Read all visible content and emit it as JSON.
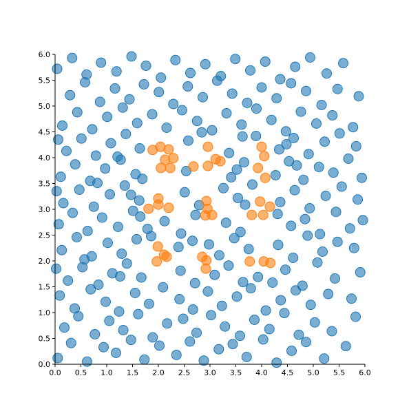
{
  "chart_data": {
    "type": "scatter",
    "xlim": [
      0,
      6
    ],
    "ylim": [
      0,
      6
    ],
    "xticks": [
      {
        "value": 0,
        "label": "0.0"
      },
      0.5,
      {
        "value": 1,
        "label": "1.0"
      },
      1.5,
      {
        "value": 2,
        "label": "2.0"
      },
      2.5,
      {
        "value": 3,
        "label": "3.0"
      },
      3.5,
      {
        "value": 4,
        "label": "4.0"
      },
      4.5,
      {
        "value": 5,
        "label": "5.0"
      },
      5.5,
      {
        "value": 6,
        "label": "6.0"
      }
    ],
    "yticks": [
      {
        "value": 0,
        "label": "0.0"
      },
      0.5,
      {
        "value": 1,
        "label": "1.0"
      },
      1.5,
      {
        "value": 2,
        "label": "2.0"
      },
      2.5,
      {
        "value": 3,
        "label": "3.0"
      },
      3.5,
      {
        "value": 4,
        "label": "4.0"
      },
      4.5,
      {
        "value": 5,
        "label": "5.0"
      },
      5.5,
      {
        "value": 6,
        "label": "6.0"
      }
    ],
    "series": [
      {
        "color": "#1f77b4",
        "x": [
          0.05,
          0.31,
          0.62,
          0.94,
          1.18,
          1.47,
          1.73,
          2.02,
          2.35,
          2.61,
          2.88,
          3.17,
          3.44,
          3.71,
          4.03,
          4.29,
          4.58,
          4.86,
          5.21,
          5.63,
          0.18,
          0.45,
          0.77,
          1.05,
          1.32,
          1.61,
          1.89,
          2.17,
          2.48,
          2.74,
          3.02,
          3.29,
          3.58,
          3.86,
          4.15,
          4.44,
          4.72,
          5.03,
          5.36,
          5.82,
          0.09,
          0.38,
          0.69,
          0.98,
          1.24,
          1.55,
          1.82,
          2.09,
          2.41,
          2.67,
          2.96,
          3.23,
          3.52,
          3.79,
          4.08,
          4.37,
          4.66,
          4.95,
          5.29,
          5.74,
          0.25,
          0.53,
          0.84,
          1.11,
          1.39,
          1.67,
          2.43,
          2.71,
          3.09,
          3.36,
          3.64,
          3.93,
          4.46,
          4.79,
          5.08,
          5.42,
          5.91,
          0.02,
          1.26,
          4.21,
          0.13,
          0.42,
          0.71,
          1.02,
          1.29,
          1.58,
          1.86,
          2.39,
          2.66,
          3.18,
          3.47,
          3.75,
          4.32,
          4.61,
          4.89,
          5.18,
          5.47,
          5.79,
          0.57,
          2.98,
          0.07,
          0.34,
          0.63,
          0.91,
          1.22,
          1.51,
          1.79,
          2.12,
          2.44,
          2.72,
          3.31,
          3.59,
          4.31,
          4.57,
          4.84,
          5.13,
          5.44,
          5.71,
          5.96,
          1.65,
          0.16,
          0.47,
          0.75,
          1.06,
          1.35,
          1.63,
          2.51,
          2.79,
          3.26,
          3.54,
          3.82,
          4.36,
          4.64,
          4.93,
          5.24,
          5.55,
          5.86,
          0.03,
          1.47,
          3.68,
          0.11,
          0.39,
          0.68,
          0.97,
          1.27,
          1.56,
          1.69,
          2.54,
          3.41,
          3.66,
          4.27,
          4.53,
          4.81,
          5.11,
          5.39,
          5.68,
          5.94,
          0.82,
          3.52,
          4.68,
          0.22,
          0.51,
          0.79,
          1.08,
          1.37,
          1.64,
          2.58,
          2.84,
          3.37,
          3.63,
          3.89,
          4.34,
          4.62,
          4.91,
          5.22,
          5.51,
          5.83,
          0.06,
          1.21,
          4.48,
          0.14,
          0.43,
          0.72,
          1.01,
          1.31,
          1.59,
          1.88,
          2.16,
          2.46,
          2.75,
          3.04,
          3.32,
          3.61,
          3.9,
          4.19,
          4.47,
          4.76,
          5.06,
          5.37,
          5.77,
          0.29,
          0.58,
          0.87,
          1.16,
          1.44,
          1.72,
          2.01,
          2.29,
          2.57,
          2.86,
          3.14,
          3.43,
          3.72,
          4.0,
          4.29,
          4.57,
          4.86,
          5.16,
          5.47,
          5.88,
          0.04,
          0.33,
          0.61,
          0.89,
          1.19,
          1.48,
          1.76,
          2.05,
          2.33,
          2.62,
          2.91,
          3.21,
          3.49,
          3.78,
          4.07,
          4.36,
          4.65,
          4.94,
          5.26,
          5.58
        ],
        "values": [
          0.12,
          0.41,
          0.05,
          0.33,
          0.22,
          0.47,
          0.09,
          0.36,
          0.18,
          0.44,
          0.07,
          0.29,
          0.39,
          0.14,
          0.48,
          0.03,
          0.26,
          0.43,
          0.11,
          0.35,
          0.71,
          0.93,
          0.58,
          0.84,
          0.66,
          0.97,
          0.52,
          0.79,
          0.88,
          0.61,
          0.95,
          0.73,
          0.55,
          0.86,
          0.68,
          0.99,
          0.57,
          0.81,
          0.64,
          0.92,
          1.33,
          1.08,
          1.45,
          1.21,
          1.02,
          1.38,
          1.17,
          1.49,
          1.26,
          1.06,
          1.41,
          1.13,
          1.31,
          1.47,
          1.04,
          1.24,
          1.43,
          1.15,
          1.36,
          1.27,
          1.62,
          1.88,
          1.54,
          1.76,
          1.95,
          1.68,
          1.81,
          1.57,
          1.73,
          1.91,
          1.59,
          1.69,
          1.83,
          1.52,
          1.97,
          1.66,
          1.78,
          1.85,
          1.7,
          1.58,
          2.21,
          2.46,
          2.09,
          2.35,
          2.14,
          2.42,
          2.48,
          2.27,
          2.39,
          2.11,
          2.44,
          2.23,
          2.31,
          2.06,
          2.49,
          2.18,
          2.37,
          2.25,
          2.03,
          2.32,
          2.71,
          2.93,
          2.58,
          2.84,
          2.66,
          2.97,
          2.62,
          2.77,
          2.53,
          2.89,
          2.74,
          2.56,
          2.91,
          2.68,
          2.81,
          2.52,
          2.95,
          2.63,
          2.79,
          2.86,
          3.12,
          3.38,
          3.05,
          3.29,
          3.46,
          3.17,
          3.33,
          3.08,
          3.41,
          3.22,
          3.48,
          3.14,
          3.37,
          3.02,
          3.26,
          3.44,
          3.19,
          3.35,
          3.28,
          3.09,
          3.63,
          3.87,
          3.55,
          3.79,
          3.96,
          3.68,
          3.59,
          3.74,
          3.62,
          3.91,
          3.66,
          3.93,
          3.57,
          3.82,
          3.71,
          3.98,
          3.61,
          3.51,
          3.77,
          3.85,
          4.13,
          4.37,
          4.04,
          4.28,
          4.46,
          4.18,
          4.33,
          4.49,
          4.09,
          4.41,
          4.42,
          4.16,
          4.38,
          4.07,
          4.31,
          4.47,
          4.22,
          4.35,
          4.02,
          4.26,
          4.62,
          4.88,
          4.55,
          4.79,
          4.97,
          4.67,
          4.84,
          4.58,
          4.92,
          4.71,
          4.53,
          4.86,
          4.64,
          4.95,
          4.73,
          4.51,
          4.89,
          4.66,
          4.82,
          4.59,
          5.21,
          5.46,
          5.08,
          5.34,
          5.13,
          5.42,
          5.27,
          5.04,
          5.38,
          5.17,
          5.49,
          5.24,
          5.06,
          5.36,
          5.15,
          5.44,
          5.29,
          5.02,
          5.33,
          5.19,
          5.72,
          5.93,
          5.61,
          5.84,
          5.67,
          5.96,
          5.78,
          5.55,
          5.89,
          5.64,
          5.81,
          5.58,
          5.91,
          5.69,
          5.86,
          5.52,
          5.76,
          5.94,
          5.63,
          5.83
        ]
      },
      {
        "color": "#ff7f0e",
        "x": [
          1.89,
          2.04,
          2.2,
          2.29,
          2.13,
          2.05,
          2.23,
          2.0,
          2.0,
          1.81,
          2.2,
          1.99,
          2.11,
          2.16,
          1.97,
          2.96,
          2.68,
          2.96,
          3.11,
          3.2,
          2.93,
          2.95,
          2.91,
          3.04,
          2.85,
          2.93,
          2.92,
          4.0,
          4.05,
          3.93,
          4.07,
          3.97,
          3.81,
          4.03,
          4.16,
          3.77,
          4.04,
          4.17
        ],
        "values": [
          4.15,
          4.21,
          4.16,
          3.99,
          3.96,
          3.8,
          3.8,
          3.21,
          3.09,
          3.01,
          3.03,
          2.28,
          2.12,
          2.08,
          1.99,
          4.21,
          3.83,
          3.84,
          3.97,
          3.93,
          3.16,
          3.01,
          2.88,
          2.89,
          2.08,
          2.01,
          1.85,
          4.21,
          4.03,
          3.8,
          3.61,
          3.15,
          2.89,
          2.89,
          3.05,
          1.99,
          1.99,
          1.96
        ]
      }
    ]
  }
}
